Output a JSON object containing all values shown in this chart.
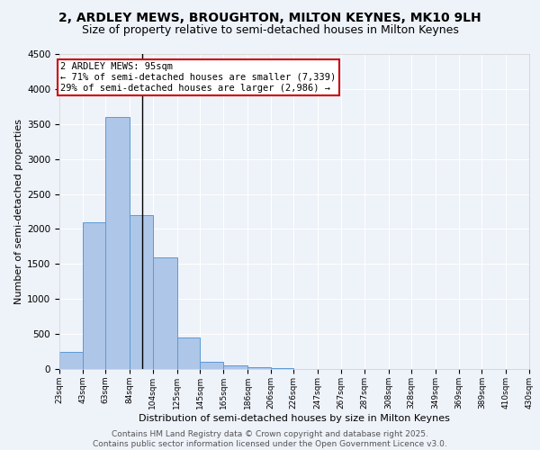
{
  "title": "2, ARDLEY MEWS, BROUGHTON, MILTON KEYNES, MK10 9LH",
  "subtitle": "Size of property relative to semi-detached houses in Milton Keynes",
  "xlabel": "Distribution of semi-detached houses by size in Milton Keynes",
  "ylabel": "Number of semi-detached properties",
  "footer_line1": "Contains HM Land Registry data © Crown copyright and database right 2025.",
  "footer_line2": "Contains public sector information licensed under the Open Government Licence v3.0.",
  "bin_edges": [
    23,
    43,
    63,
    84,
    104,
    125,
    145,
    165,
    186,
    206,
    226,
    247,
    267,
    287,
    308,
    328,
    349,
    369,
    389,
    410,
    430
  ],
  "bar_heights": [
    250,
    2100,
    3600,
    2200,
    1600,
    450,
    100,
    50,
    30,
    10,
    5,
    3,
    2,
    1,
    1,
    0,
    0,
    0,
    0,
    0
  ],
  "bar_color": "#aec6e8",
  "bar_edge_color": "#5b9bd5",
  "property_size": 95,
  "annotation_text_line1": "2 ARDLEY MEWS: 95sqm",
  "annotation_text_line2": "← 71% of semi-detached houses are smaller (7,339)",
  "annotation_text_line3": "29% of semi-detached houses are larger (2,986) →",
  "annotation_box_color": "#cc0000",
  "vline_color": "#000000",
  "ylim": [
    0,
    4500
  ],
  "background_color": "#eef2f9",
  "grid_color": "#ffffff",
  "title_fontsize": 10,
  "subtitle_fontsize": 9,
  "tick_label_fontsize": 6.5,
  "axis_label_fontsize": 8,
  "footer_fontsize": 6.5,
  "annotation_fontsize": 7.5
}
